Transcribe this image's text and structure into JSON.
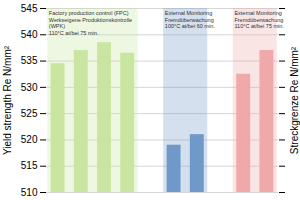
{
  "chart_data": {
    "type": "bar",
    "categories": [
      null,
      null,
      null,
      null,
      null,
      null,
      null,
      null
    ],
    "series": [
      {
        "name": "Factory production control (FPC)\nWerkseigene Produktionskontrolle\n(WPK)\n110°C at/bei 75 min.",
        "color": "#c8e6a0",
        "values": [
          534.5,
          537.0,
          538.5,
          536.5,
          null,
          null,
          null,
          null
        ]
      },
      {
        "name": "External Monitoring\nFremdüberwachung\n100°C at/bei 60 min.",
        "color": "#7098c8",
        "values": [
          null,
          null,
          null,
          null,
          519.0,
          521.0,
          null,
          null
        ]
      },
      {
        "name": "External Monitoring\nFremdüberwachung\n110°C at/bei 75 min.",
        "color": "#f0a8a8",
        "values": [
          null,
          null,
          null,
          null,
          null,
          null,
          532.5,
          537.0
        ]
      }
    ],
    "ylabel": "Yield strength Re N/mm²",
    "y2label": "Streckgrenze Re N/mm²",
    "ylim": [
      510,
      545
    ],
    "yticks": [
      510,
      515,
      520,
      525,
      530,
      535,
      540,
      545
    ],
    "grid": true,
    "tick_labels": "y"
  }
}
